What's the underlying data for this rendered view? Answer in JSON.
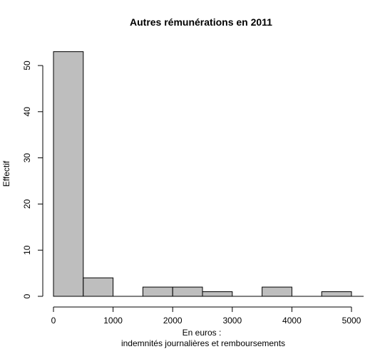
{
  "chart_data": {
    "type": "bar",
    "subtype": "histogram",
    "title": "Autres rémunérations en 2011",
    "xlabel_line1": "En euros :",
    "xlabel_line2": "indemnités journalières et remboursements",
    "ylabel": "Effectif",
    "bins": [
      {
        "from": 0,
        "to": 500,
        "count": 53
      },
      {
        "from": 500,
        "to": 1000,
        "count": 4
      },
      {
        "from": 1000,
        "to": 1500,
        "count": 0
      },
      {
        "from": 1500,
        "to": 2000,
        "count": 2
      },
      {
        "from": 2000,
        "to": 2500,
        "count": 2
      },
      {
        "from": 2500,
        "to": 3000,
        "count": 1
      },
      {
        "from": 3000,
        "to": 3500,
        "count": 0
      },
      {
        "from": 3500,
        "to": 4000,
        "count": 2
      },
      {
        "from": 4000,
        "to": 4500,
        "count": 0
      },
      {
        "from": 4500,
        "to": 5000,
        "count": 1
      }
    ],
    "xticks": [
      0,
      1000,
      2000,
      3000,
      4000,
      5000
    ],
    "yticks": [
      0,
      10,
      20,
      30,
      40,
      50
    ],
    "xlim": [
      0,
      5000
    ],
    "ylim": [
      0,
      53
    ],
    "bar_fill": "#bebebe",
    "bar_stroke": "#000000",
    "grid": false
  }
}
